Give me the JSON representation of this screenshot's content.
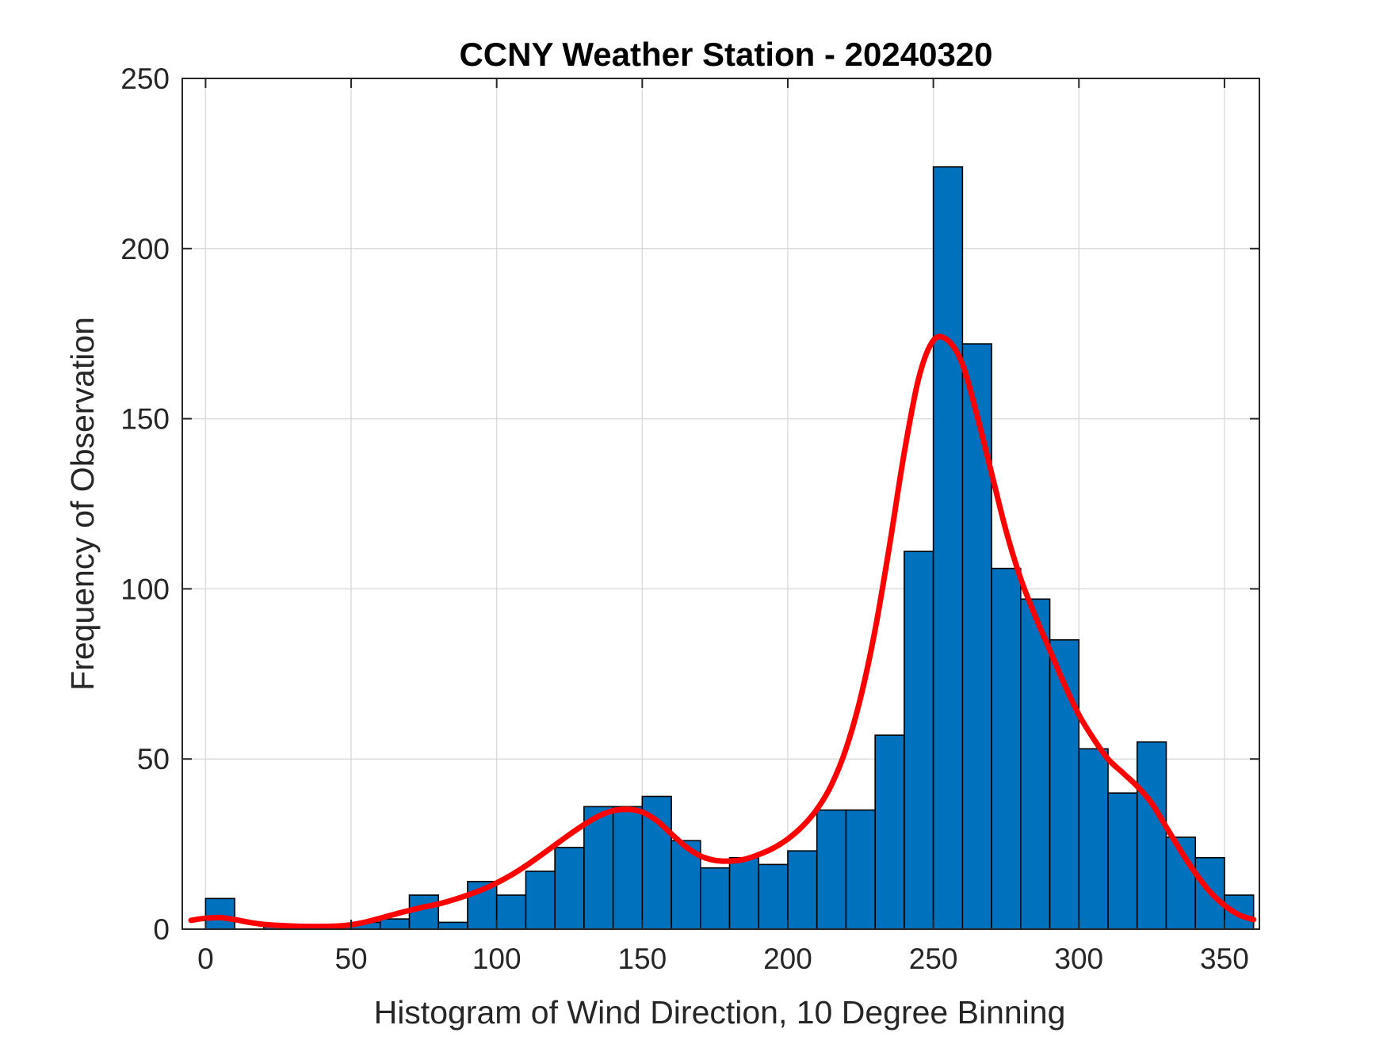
{
  "chart_data": {
    "type": "bar",
    "title": "CCNY Weather Station - 20240320",
    "xlabel": "Histogram of Wind Direction, 10 Degree Binning",
    "ylabel": "Frequency of Observation",
    "xlim": [
      -8,
      362
    ],
    "ylim": [
      0,
      250
    ],
    "xticks": [
      0,
      50,
      100,
      150,
      200,
      250,
      300,
      350
    ],
    "yticks": [
      0,
      50,
      100,
      150,
      200,
      250
    ],
    "grid": true,
    "bin_width": 10,
    "bar_color": "#0072BD",
    "bar_edge_color": "#000000",
    "bins": {
      "edges_start": [
        0,
        10,
        20,
        30,
        40,
        50,
        60,
        70,
        80,
        90,
        100,
        110,
        120,
        130,
        140,
        150,
        160,
        170,
        180,
        190,
        200,
        210,
        220,
        230,
        240,
        250,
        260,
        270,
        280,
        290,
        300,
        310,
        320,
        330,
        340,
        350
      ],
      "values": [
        9,
        0,
        1,
        0,
        1,
        2,
        3,
        10,
        2,
        14,
        10,
        17,
        24,
        36,
        36,
        39,
        26,
        18,
        21,
        19,
        23,
        35,
        35,
        57,
        111,
        224,
        172,
        106,
        97,
        85,
        53,
        40,
        55,
        27,
        21,
        10
      ]
    },
    "density_fit": {
      "color": "#FF0000",
      "x": [
        -5,
        0,
        5,
        10,
        15,
        20,
        25,
        30,
        35,
        40,
        45,
        50,
        55,
        60,
        65,
        70,
        75,
        80,
        85,
        90,
        95,
        100,
        105,
        110,
        115,
        120,
        125,
        130,
        135,
        140,
        145,
        150,
        155,
        160,
        165,
        170,
        175,
        180,
        185,
        190,
        195,
        200,
        205,
        210,
        215,
        220,
        225,
        230,
        235,
        240,
        245,
        250,
        255,
        260,
        265,
        270,
        275,
        280,
        285,
        290,
        295,
        300,
        305,
        310,
        315,
        320,
        325,
        330,
        335,
        340,
        345,
        350,
        355,
        360
      ],
      "y": [
        2.6,
        3.2,
        3.4,
        2.8,
        2.0,
        1.4,
        1.1,
        0.9,
        0.8,
        0.8,
        0.9,
        1.3,
        2.1,
        3.2,
        4.4,
        5.5,
        6.5,
        7.4,
        8.6,
        10.0,
        11.6,
        13.6,
        15.9,
        18.6,
        21.6,
        24.7,
        27.8,
        30.7,
        33.2,
        34.8,
        35.2,
        34.4,
        31.9,
        28.0,
        24.2,
        21.5,
        20.2,
        20.0,
        20.5,
        21.9,
        23.8,
        26.5,
        30.2,
        35.2,
        42.4,
        53.0,
        68.0,
        88.0,
        113.0,
        140.0,
        162.0,
        173.0,
        173.0,
        166.0,
        151.0,
        134.0,
        117.0,
        103.0,
        92.0,
        82.0,
        72.0,
        63.0,
        56.0,
        50.0,
        46.0,
        42.0,
        37.0,
        30.0,
        23.0,
        16.5,
        11.0,
        7.0,
        4.2,
        2.8
      ]
    }
  }
}
